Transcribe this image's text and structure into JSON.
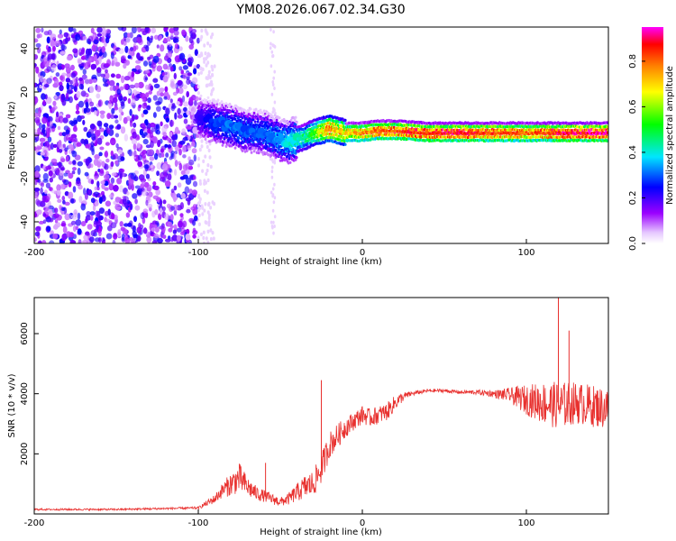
{
  "title": "YM08.2026.067.02.34.G30",
  "chart_data": [
    {
      "type": "heatmap",
      "title": "YM08.2026.067.02.34.G30",
      "xlabel": "Height of straight line (km)",
      "ylabel": "Frequency (Hz)",
      "xlim": [
        -200,
        150
      ],
      "ylim": [
        -50,
        50
      ],
      "xticks": [
        -200,
        -100,
        0,
        100
      ],
      "xtick_labels": [
        "-200",
        "-100",
        "0",
        "100"
      ],
      "yticks": [
        -40,
        -20,
        0,
        20,
        40
      ],
      "ytick_labels": [
        "-40",
        "-20",
        "0",
        "20",
        "40"
      ],
      "colorbar": {
        "label": "Normalized spectral amplitude",
        "range": [
          0,
          0.95
        ],
        "ticks": [
          0.0,
          0.2,
          0.4,
          0.6,
          0.8
        ],
        "tick_labels": [
          "0.0",
          "0.2",
          "0.4",
          "0.6",
          "0.8"
        ],
        "colors": [
          "#ffffff",
          "#e6c8ff",
          "#9b00ff",
          "#0000ff",
          "#00e6ff",
          "#00ff00",
          "#ffff00",
          "#ff8000",
          "#ff0000",
          "#ff00ff"
        ]
      },
      "noise_region": {
        "x": [
          -200,
          -100
        ],
        "amplitude": [
          0.05,
          0.25
        ]
      },
      "signal_ridge": {
        "x": [
          -100,
          -90,
          -80,
          -70,
          -60,
          -50,
          -45,
          -40,
          -35,
          -30,
          -25,
          -20,
          -15,
          -10,
          -5,
          0,
          10,
          20,
          40,
          60,
          80,
          100,
          120,
          150
        ],
        "freq": [
          8,
          6,
          4,
          2,
          1,
          -2,
          -3,
          -2,
          -1,
          1,
          2,
          3,
          2,
          1,
          1,
          1,
          2,
          2,
          1,
          1,
          1,
          1,
          1,
          1
        ],
        "peak_amplitude": [
          0.2,
          0.28,
          0.32,
          0.3,
          0.3,
          0.35,
          0.4,
          0.42,
          0.45,
          0.55,
          0.65,
          0.8,
          0.7,
          0.7,
          0.75,
          0.78,
          0.82,
          0.85,
          0.88,
          0.9,
          0.85,
          0.8,
          0.9,
          0.92
        ]
      }
    },
    {
      "type": "line",
      "xlabel": "Height of straight line (km)",
      "ylabel": "SNR (10 * v/v)",
      "xlim": [
        -200,
        150
      ],
      "ylim": [
        0,
        7200
      ],
      "xticks": [
        -200,
        -100,
        0,
        100
      ],
      "xtick_labels": [
        "-200",
        "-100",
        "0",
        "100"
      ],
      "yticks": [
        2000,
        4000,
        6000
      ],
      "ytick_labels": [
        "2000",
        "4000",
        "6000"
      ],
      "series": [
        {
          "name": "SNR",
          "color": "#e8302e",
          "x": [
            -200,
            -150,
            -100,
            -90,
            -85,
            -80,
            -75,
            -70,
            -65,
            -60,
            -55,
            -50,
            -45,
            -40,
            -35,
            -30,
            -25,
            -20,
            -15,
            -10,
            -5,
            0,
            5,
            10,
            15,
            20,
            25,
            30,
            40,
            50,
            60,
            70,
            80,
            90,
            100,
            110,
            120,
            130,
            140,
            150
          ],
          "y": [
            150,
            150,
            200,
            500,
            800,
            1000,
            1200,
            900,
            700,
            600,
            500,
            400,
            500,
            700,
            900,
            1000,
            1500,
            2300,
            2600,
            2900,
            3100,
            3300,
            3200,
            3300,
            3400,
            3700,
            3900,
            4000,
            4100,
            4100,
            4050,
            4050,
            4000,
            3950,
            3800,
            3700,
            3600,
            3700,
            3600,
            3500
          ],
          "noise": [
            30,
            30,
            40,
            150,
            250,
            400,
            500,
            350,
            250,
            200,
            180,
            150,
            200,
            300,
            400,
            450,
            500,
            450,
            400,
            350,
            300,
            300,
            300,
            300,
            300,
            250,
            150,
            80,
            60,
            60,
            60,
            80,
            120,
            250,
            500,
            700,
            800,
            700,
            700,
            700
          ]
        }
      ],
      "spikes": [
        {
          "x": -59,
          "y": 1700
        },
        {
          "x": -25,
          "y": 4450
        },
        {
          "x": 119.5,
          "y": 7200
        },
        {
          "x": 126,
          "y": 6100
        }
      ]
    }
  ]
}
